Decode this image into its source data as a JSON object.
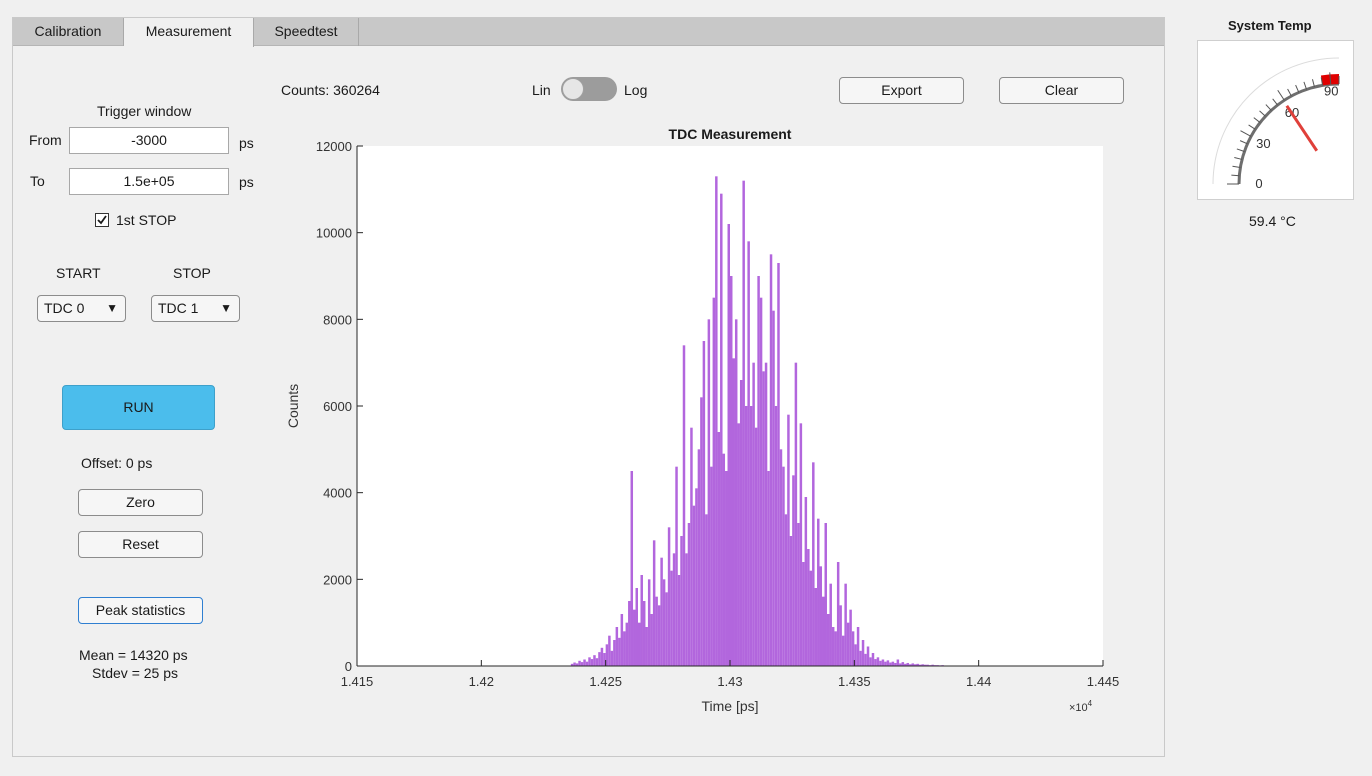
{
  "tabs": [
    {
      "label": "Calibration",
      "active": false
    },
    {
      "label": "Measurement",
      "active": true
    },
    {
      "label": "Speedtest",
      "active": false
    }
  ],
  "trigger": {
    "title": "Trigger window",
    "from_label": "From",
    "from_value": "-3000",
    "from_unit": "ps",
    "to_label": "To",
    "to_value": "1.5e+05",
    "to_unit": "ps",
    "first_stop_label": "1st STOP",
    "first_stop_checked": true
  },
  "channels": {
    "start_label": "START",
    "stop_label": "STOP",
    "start_value": "TDC 0",
    "stop_value": "TDC 1"
  },
  "run_label": "RUN",
  "offset_text": "Offset: 0 ps",
  "zero_label": "Zero",
  "reset_label": "Reset",
  "peak_stats_label": "Peak statistics",
  "mean_text": "Mean = 14320 ps",
  "stdev_text": "Stdev = 25 ps",
  "counts_text": "Counts: 360264",
  "scale_toggle": {
    "left": "Lin",
    "right": "Log",
    "state": "Lin"
  },
  "export_label": "Export",
  "clear_label": "Clear",
  "colors": {
    "bars": "#b266dd",
    "run_button": "#4bbdec",
    "gauge_needle": "#e0403a",
    "gauge_redzone": "#e00000"
  },
  "chart_data": {
    "type": "bar",
    "title": "TDC Measurement",
    "xlabel": "Time [ps]",
    "ylabel": "Counts",
    "x_exponent_label": "×10",
    "x_exponent_power": "4",
    "xlim": [
      1.415,
      1.445
    ],
    "ylim": [
      0,
      12000
    ],
    "xticks": [
      "1.415",
      "1.42",
      "1.425",
      "1.43",
      "1.435",
      "1.44",
      "1.445"
    ],
    "yticks": [
      "0",
      "2000",
      "4000",
      "6000",
      "8000",
      "10000",
      "12000"
    ],
    "bin_start": 1.4236,
    "bin_width": 0.0001,
    "values": [
      50,
      80,
      60,
      120,
      90,
      150,
      100,
      200,
      160,
      250,
      180,
      320,
      420,
      300,
      500,
      700,
      350,
      600,
      900,
      650,
      1200,
      800,
      1000,
      1500,
      4500,
      1300,
      1800,
      1000,
      2100,
      1500,
      900,
      2000,
      1200,
      2900,
      1600,
      1400,
      2500,
      2000,
      1700,
      3200,
      2200,
      2600,
      4600,
      2100,
      3000,
      7400,
      2600,
      3300,
      5500,
      3700,
      4100,
      5000,
      6200,
      7500,
      3500,
      8000,
      4600,
      8500,
      11300,
      5400,
      10900,
      4900,
      4500,
      10200,
      9000,
      7100,
      8000,
      5600,
      6600,
      11200,
      6000,
      9800,
      6000,
      7000,
      5500,
      9000,
      8500,
      6800,
      7000,
      4500,
      9500,
      8200,
      6000,
      9300,
      5000,
      4600,
      3500,
      5800,
      3000,
      4400,
      7000,
      3300,
      5600,
      2400,
      3900,
      2700,
      2200,
      4700,
      1800,
      3400,
      2300,
      1600,
      3300,
      1200,
      1900,
      900,
      800,
      2400,
      1400,
      700,
      1900,
      1000,
      1300,
      800,
      500,
      900,
      350,
      600,
      280,
      450,
      200,
      300,
      160,
      200,
      120,
      150,
      100,
      130,
      80,
      100,
      70,
      150,
      60,
      90,
      50,
      70,
      40,
      60,
      40,
      50,
      30,
      40,
      30,
      30,
      20,
      30,
      20,
      20,
      15,
      20,
      10,
      10
    ]
  },
  "gauge": {
    "title": "System Temp",
    "ticks": [
      "0",
      "30",
      "60",
      "90"
    ],
    "min": 0,
    "max": 95,
    "value": 59.4,
    "readout": "59.4 °C"
  }
}
